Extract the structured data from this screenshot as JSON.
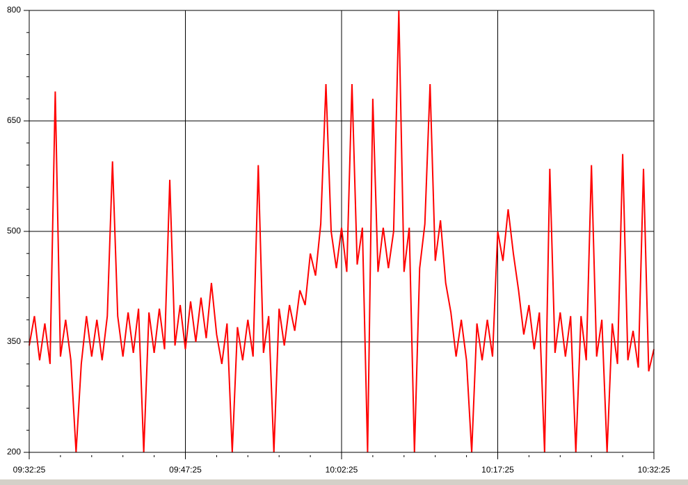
{
  "chart_data": {
    "type": "line",
    "categories": [
      "09:32:25",
      null,
      null,
      null,
      null,
      null,
      null,
      null,
      null,
      null,
      null,
      null,
      null,
      null,
      null,
      null,
      null,
      null,
      null,
      null,
      null,
      null,
      null,
      null,
      null,
      null,
      null,
      null,
      null,
      null,
      "09:47:25",
      null,
      null,
      null,
      null,
      null,
      null,
      null,
      null,
      null,
      null,
      null,
      null,
      null,
      null,
      null,
      null,
      null,
      null,
      null,
      null,
      null,
      null,
      null,
      null,
      null,
      null,
      null,
      null,
      null,
      "10:02:25",
      null,
      null,
      null,
      null,
      null,
      null,
      null,
      null,
      null,
      null,
      null,
      null,
      null,
      null,
      null,
      null,
      null,
      null,
      null,
      null,
      null,
      null,
      null,
      null,
      null,
      null,
      null,
      null,
      null,
      "10:17:25",
      null,
      null,
      null,
      null,
      null,
      null,
      null,
      null,
      null,
      null,
      null,
      null,
      null,
      null,
      null,
      null,
      null,
      null,
      null,
      null,
      null,
      null,
      null,
      null,
      null,
      null,
      null,
      null,
      null,
      "10:32:25"
    ],
    "values": [
      345,
      385,
      325,
      375,
      320,
      690,
      330,
      380,
      325,
      200,
      320,
      385,
      330,
      380,
      325,
      385,
      595,
      385,
      330,
      390,
      335,
      395,
      200,
      390,
      335,
      395,
      340,
      570,
      345,
      400,
      340,
      405,
      350,
      410,
      355,
      430,
      360,
      320,
      375,
      200,
      370,
      325,
      380,
      330,
      590,
      335,
      385,
      200,
      395,
      345,
      400,
      365,
      420,
      400,
      470,
      440,
      510,
      700,
      500,
      450,
      505,
      445,
      700,
      455,
      505,
      200,
      680,
      445,
      505,
      450,
      500,
      800,
      445,
      505,
      200,
      450,
      510,
      700,
      460,
      515,
      430,
      390,
      330,
      380,
      325,
      200,
      375,
      325,
      380,
      330,
      500,
      460,
      530,
      470,
      420,
      360,
      400,
      340,
      390,
      200,
      585,
      335,
      390,
      330,
      385,
      200,
      385,
      325,
      590,
      330,
      380,
      200,
      375,
      320,
      605,
      325,
      365,
      315,
      585,
      310,
      340
    ],
    "color": "#ff0000",
    "ylim": [
      200,
      800
    ],
    "yticks": [
      200,
      350,
      500,
      650,
      800
    ],
    "grid": true
  }
}
